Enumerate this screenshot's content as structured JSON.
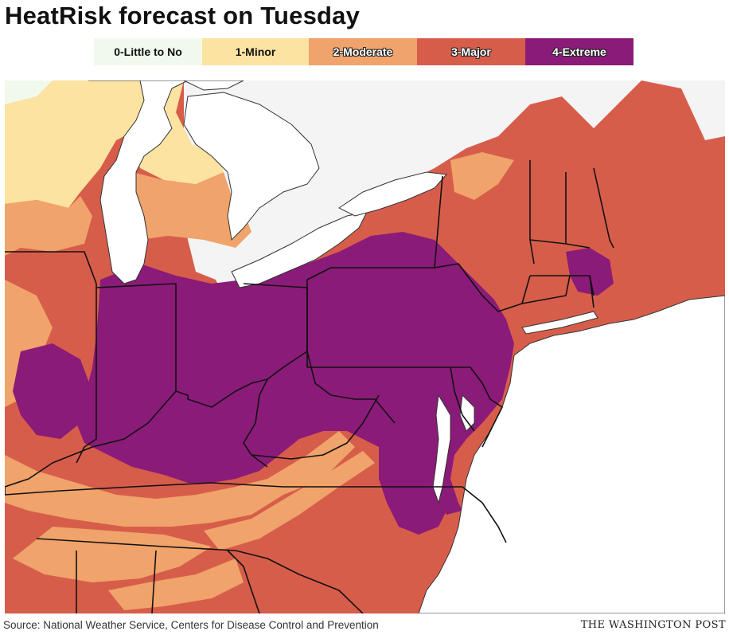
{
  "title": "HeatRisk forecast on Tuesday",
  "legend": [
    {
      "label": "0-Little to No",
      "color": "#f1f9ec",
      "text_color": "#111111",
      "outlined": false
    },
    {
      "label": "1-Minor",
      "color": "#fde3a1",
      "text_color": "#111111",
      "outlined": false
    },
    {
      "label": "2-Moderate",
      "color": "#f0a36a",
      "text_color": "#ffffff",
      "outlined": true
    },
    {
      "label": "3-Major",
      "color": "#d75d4b",
      "text_color": "#ffffff",
      "outlined": true
    },
    {
      "label": "4-Extreme",
      "color": "#8b1b78",
      "text_color": "#ffffff",
      "outlined": true
    }
  ],
  "colors": {
    "lakes_land_outside": "#f4f4f4",
    "borders": "#111111",
    "water": "#ffffff"
  },
  "source": "Source: National Weather Service, Centers for Disease Control and Prevention",
  "brand": "THE WASHINGTON POST"
}
